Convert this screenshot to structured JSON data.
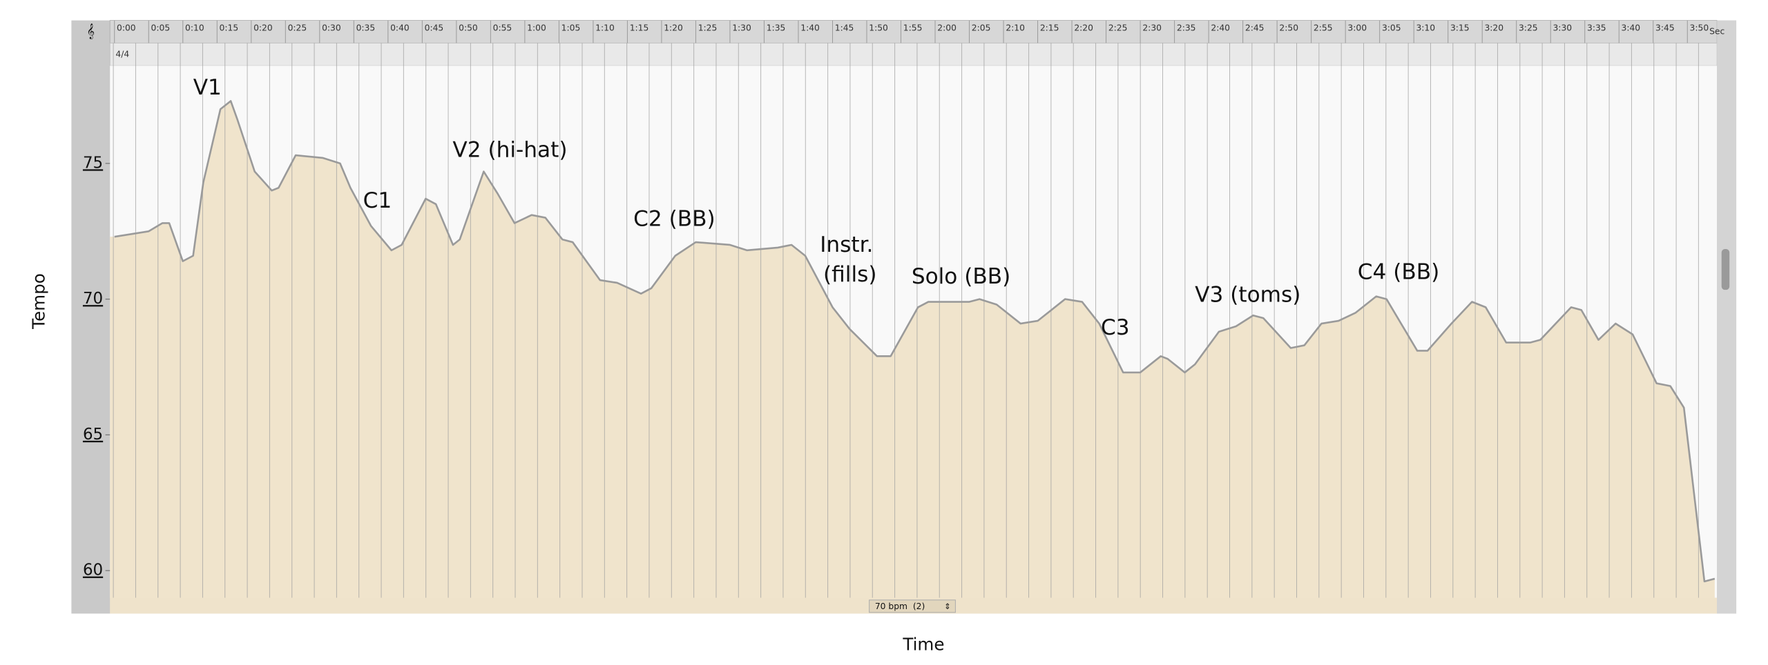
{
  "chart_data": {
    "type": "area",
    "x_label": "Time",
    "y_label": "Tempo",
    "color": "#f0e4cc",
    "line_color": "#9a9a9a",
    "time_signature": "4/4",
    "ruler_unit": "Sec",
    "tempo_control": "70 bpm  (2)",
    "annotations": [
      "V1",
      "C1",
      "V2 (hi-hat)",
      "C2 (BB)",
      "Instr.",
      "(fills)",
      "Solo (BB)",
      "C3",
      "V3 (toms)",
      "C4 (BB)"
    ],
    "xlim": [
      0,
      234
    ],
    "ylim": [
      59,
      78.6
    ],
    "yticks": [
      60,
      65,
      70,
      75
    ],
    "xticks": [
      {
        "value": 0,
        "label": "0:00"
      },
      {
        "value": 5,
        "label": "0:05"
      },
      {
        "value": 10,
        "label": "0:10"
      },
      {
        "value": 15,
        "label": "0:15"
      },
      {
        "value": 20,
        "label": "0:20"
      },
      {
        "value": 25,
        "label": "0:25"
      },
      {
        "value": 30,
        "label": "0:30"
      },
      {
        "value": 35,
        "label": "0:35"
      },
      {
        "value": 40,
        "label": "0:40"
      },
      {
        "value": 45,
        "label": "0:45"
      },
      {
        "value": 50,
        "label": "0:50"
      },
      {
        "value": 55,
        "label": "0:55"
      },
      {
        "value": 60,
        "label": "1:00"
      },
      {
        "value": 65,
        "label": "1:05"
      },
      {
        "value": 70,
        "label": "1:10"
      },
      {
        "value": 75,
        "label": "1:15"
      },
      {
        "value": 80,
        "label": "1:20"
      },
      {
        "value": 85,
        "label": "1:25"
      },
      {
        "value": 90,
        "label": "1:30"
      },
      {
        "value": 95,
        "label": "1:35"
      },
      {
        "value": 100,
        "label": "1:40"
      },
      {
        "value": 105,
        "label": "1:45"
      },
      {
        "value": 110,
        "label": "1:50"
      },
      {
        "value": 115,
        "label": "1:55"
      },
      {
        "value": 120,
        "label": "2:00"
      },
      {
        "value": 125,
        "label": "2:05"
      },
      {
        "value": 130,
        "label": "2:10"
      },
      {
        "value": 135,
        "label": "2:15"
      },
      {
        "value": 140,
        "label": "2:20"
      },
      {
        "value": 145,
        "label": "2:25"
      },
      {
        "value": 150,
        "label": "2:30"
      },
      {
        "value": 155,
        "label": "2:35"
      },
      {
        "value": 160,
        "label": "2:40"
      },
      {
        "value": 165,
        "label": "2:45"
      },
      {
        "value": 170,
        "label": "2:50"
      },
      {
        "value": 175,
        "label": "2:55"
      },
      {
        "value": 180,
        "label": "3:00"
      },
      {
        "value": 185,
        "label": "3:05"
      },
      {
        "value": 190,
        "label": "3:10"
      },
      {
        "value": 195,
        "label": "3:15"
      },
      {
        "value": 200,
        "label": "3:20"
      },
      {
        "value": 205,
        "label": "3:25"
      },
      {
        "value": 210,
        "label": "3:30"
      },
      {
        "value": 215,
        "label": "3:35"
      },
      {
        "value": 220,
        "label": "3:40"
      },
      {
        "value": 225,
        "label": "3:45"
      },
      {
        "value": 230,
        "label": "3:50"
      }
    ],
    "x": [
      0,
      5,
      7,
      8,
      10,
      11.5,
      13,
      15.5,
      17,
      18,
      20.5,
      23,
      24,
      26.5,
      30.5,
      33,
      34.5,
      37.5,
      40.5,
      42,
      45.5,
      47,
      49.5,
      50.5,
      54,
      56,
      58.5,
      61,
      63,
      65.5,
      67,
      71,
      73.5,
      77,
      78.5,
      82,
      85,
      90,
      92.5,
      97,
      99,
      101,
      105,
      107.5,
      111.5,
      113.5,
      117.5,
      119,
      125,
      126.5,
      129,
      132.5,
      135,
      139,
      141.5,
      144,
      147.5,
      150,
      153,
      154,
      156.5,
      158,
      161.5,
      164,
      166.5,
      168,
      172,
      174,
      176.5,
      179,
      181.5,
      184.5,
      186,
      190.5,
      192,
      195.5,
      198.5,
      200.5,
      203.5,
      207,
      208.5,
      213,
      214.5,
      217,
      219.5,
      222,
      225.5,
      227.5,
      229.5,
      232.5,
      234
    ],
    "values": [
      72.3,
      72.5,
      72.8,
      72.8,
      71.4,
      71.6,
      74.3,
      77,
      77.3,
      76.6,
      74.7,
      74,
      74.1,
      75.3,
      75.2,
      75,
      74.1,
      72.7,
      71.8,
      72,
      73.7,
      73.5,
      72,
      72.2,
      74.7,
      73.9,
      72.8,
      73.1,
      73,
      72.2,
      72.1,
      70.7,
      70.6,
      70.2,
      70.4,
      71.6,
      72.1,
      72,
      71.8,
      71.9,
      72,
      71.6,
      69.7,
      68.9,
      67.9,
      67.9,
      69.7,
      69.9,
      69.9,
      70,
      69.8,
      69.1,
      69.2,
      70,
      69.9,
      69.1,
      67.3,
      67.3,
      67.9,
      67.8,
      67.3,
      67.6,
      68.8,
      69,
      69.4,
      69.3,
      68.2,
      68.3,
      69.1,
      69.2,
      69.5,
      70.1,
      70,
      68.1,
      68.1,
      69.1,
      69.9,
      69.7,
      68.4,
      68.4,
      68.5,
      69.7,
      69.6,
      68.5,
      69.1,
      68.7,
      66.9,
      66.8,
      66,
      59.6,
      59.7
    ]
  }
}
